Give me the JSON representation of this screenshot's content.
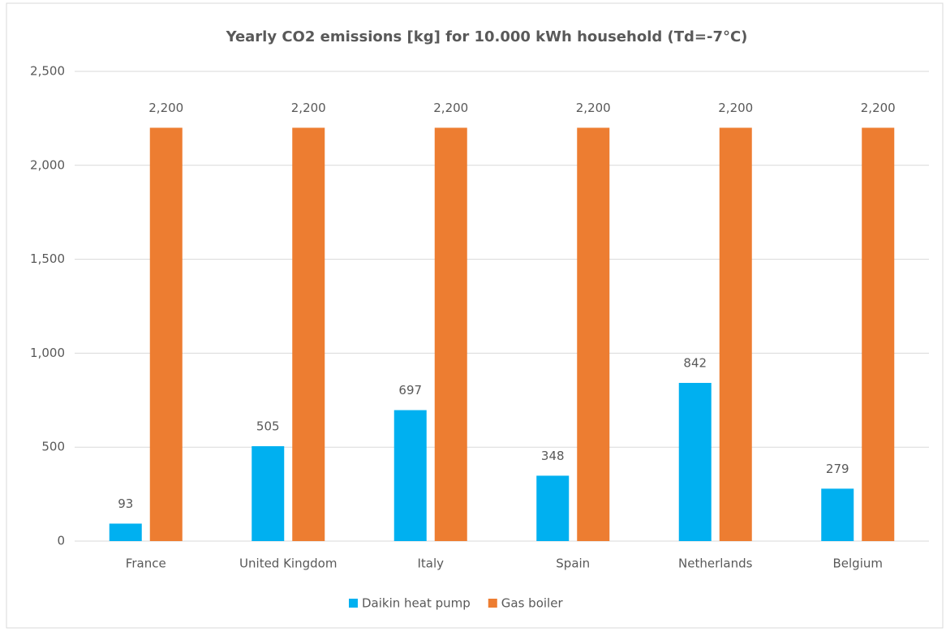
{
  "chart_data": {
    "type": "bar",
    "title": "Yearly CO2 emissions [kg] for 10.000 kWh household (Td=-7°C)",
    "categories": [
      "France",
      "United Kingdom",
      "Italy",
      "Spain",
      "Netherlands",
      "Belgium"
    ],
    "series": [
      {
        "name": "Daikin heat pump",
        "color": "#00b0f0",
        "values": [
          93,
          505,
          697,
          348,
          842,
          279
        ]
      },
      {
        "name": "Gas boiler",
        "color": "#ed7d31",
        "values": [
          2200,
          2200,
          2200,
          2200,
          2200,
          2200
        ],
        "value_labels": [
          "2,200",
          "2,200",
          "2,200",
          "2,200",
          "2,200",
          "2,200"
        ]
      }
    ],
    "ylim": [
      0,
      2500
    ],
    "yticks": [
      0,
      500,
      {
        "value": 1000,
        "label": "1,000"
      },
      {
        "value": 1500,
        "label": "1,500"
      },
      {
        "value": 2000,
        "label": "2,000"
      },
      {
        "value": 2500,
        "label": "2,500"
      }
    ],
    "grid": true,
    "legend": "bottom"
  }
}
